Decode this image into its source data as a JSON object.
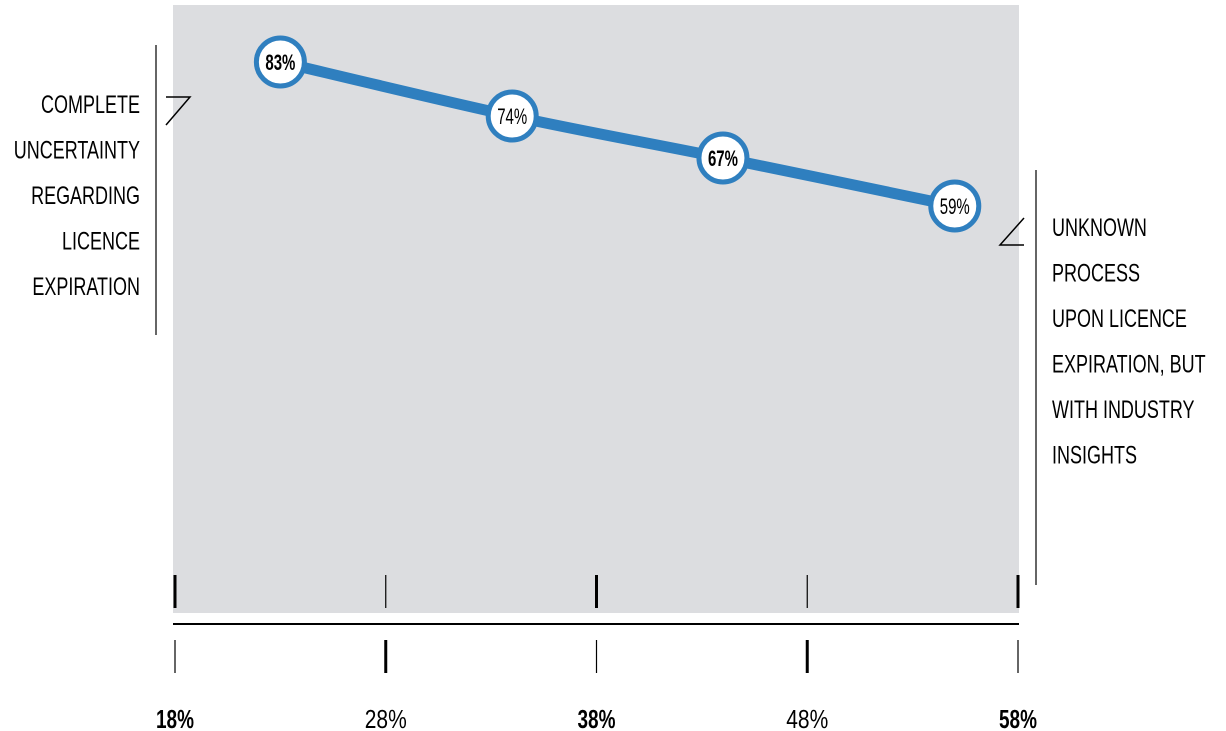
{
  "chart_data": {
    "type": "line",
    "title": "",
    "xlabel": "",
    "ylabel": "",
    "x": [
      23,
      34,
      44,
      55
    ],
    "series": [
      {
        "values": [
          83,
          74,
          67,
          59
        ],
        "labels": [
          "83%",
          "74%",
          "67%",
          "59%"
        ]
      }
    ],
    "label_bold": [
      true,
      false,
      true,
      false
    ],
    "x_ticks": [
      "18%",
      "28%",
      "38%",
      "48%",
      "58%"
    ],
    "x_tick_bold": [
      true,
      false,
      true,
      false,
      true
    ],
    "xlim": [
      18,
      58
    ],
    "ylim": [
      0,
      90
    ],
    "grid": false,
    "colors": {
      "line": "#2f7fbf",
      "marker_fill": "#ffffff",
      "plot_bg": "#dcdde0",
      "ink": "#000000"
    }
  },
  "annotations": {
    "left": [
      "COMPLETE",
      "UNCERTAINTY",
      "REGARDING",
      "LICENCE",
      "EXPIRATION"
    ],
    "right": [
      "UNKNOWN",
      "PROCESS",
      "UPON LICENCE",
      "EXPIRATION, BUT",
      "WITH INDUSTRY",
      "INSIGHTS"
    ]
  }
}
